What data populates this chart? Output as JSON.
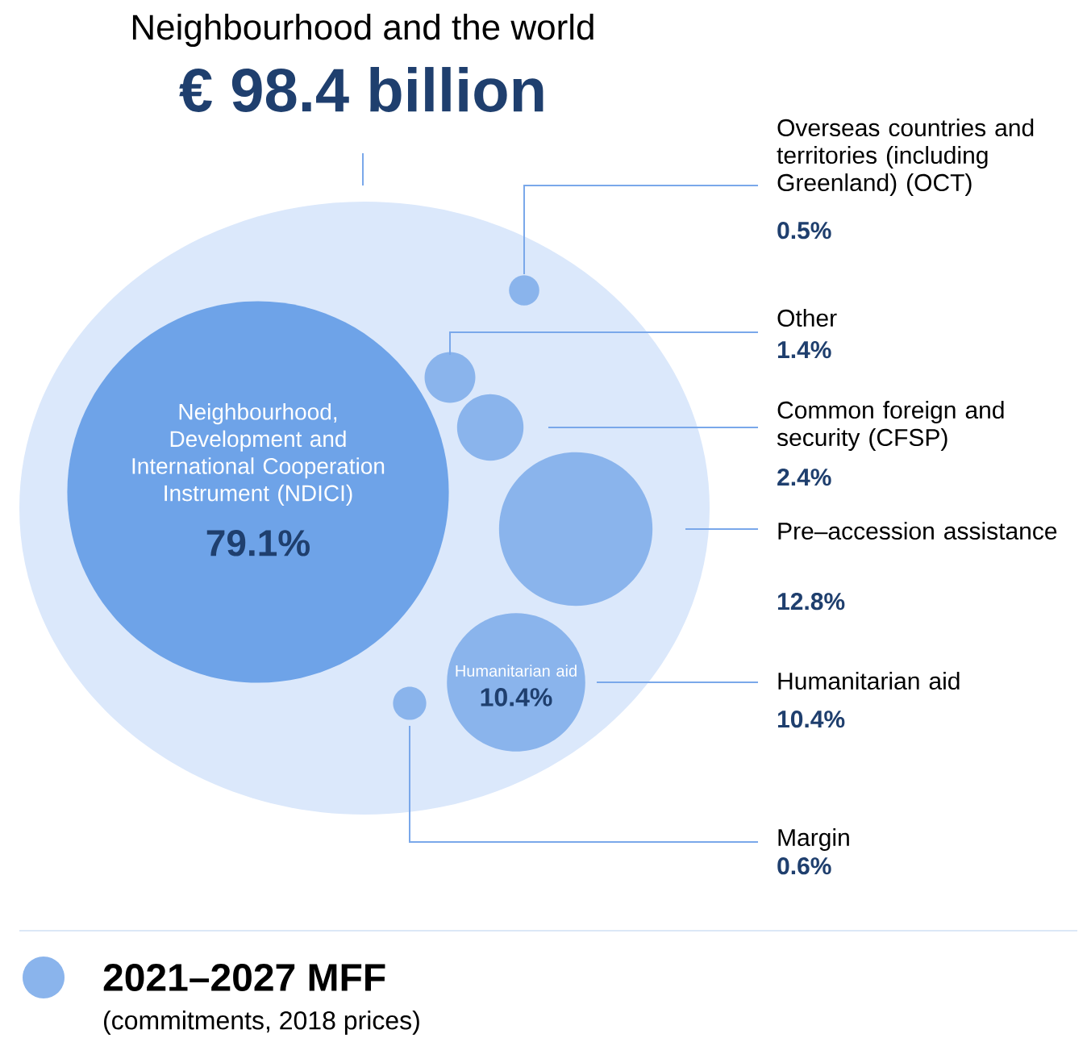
{
  "chart_data": {
    "type": "other",
    "title": "Neighbourhood and the world",
    "subtitle": "€ 98.4 billion",
    "categories": [
      "Overseas countries and territories (including Greenland) (OCT)",
      "Other",
      "Common foreign and security (CFSP)",
      "Pre–accession assistance",
      "Humanitarian aid",
      "Margin",
      "Neighbourhood, Development and International Cooperation Instrument (NDICI)"
    ],
    "series": [
      {
        "name": "2021–2027 MFF",
        "color": "#8ab4ec",
        "values": [
          0.5,
          1.4,
          2.4,
          12.8,
          10.4,
          0.6,
          79.1
        ],
        "value_labels": [
          "0.5%",
          "1.4%",
          "2.4%",
          "12.8%",
          "10.4%",
          "0.6%",
          "79.1%"
        ],
        "colors": [
          "#8ab4ec",
          "#8ab4ec",
          "#8ab4ec",
          "#8ab4ec",
          "#8ab4ec",
          "#8ab4ec",
          "#6ea3e8"
        ]
      }
    ],
    "legend": "bottom left",
    "annotations": [
      "(commitments, 2018 prices)"
    ]
  }
}
